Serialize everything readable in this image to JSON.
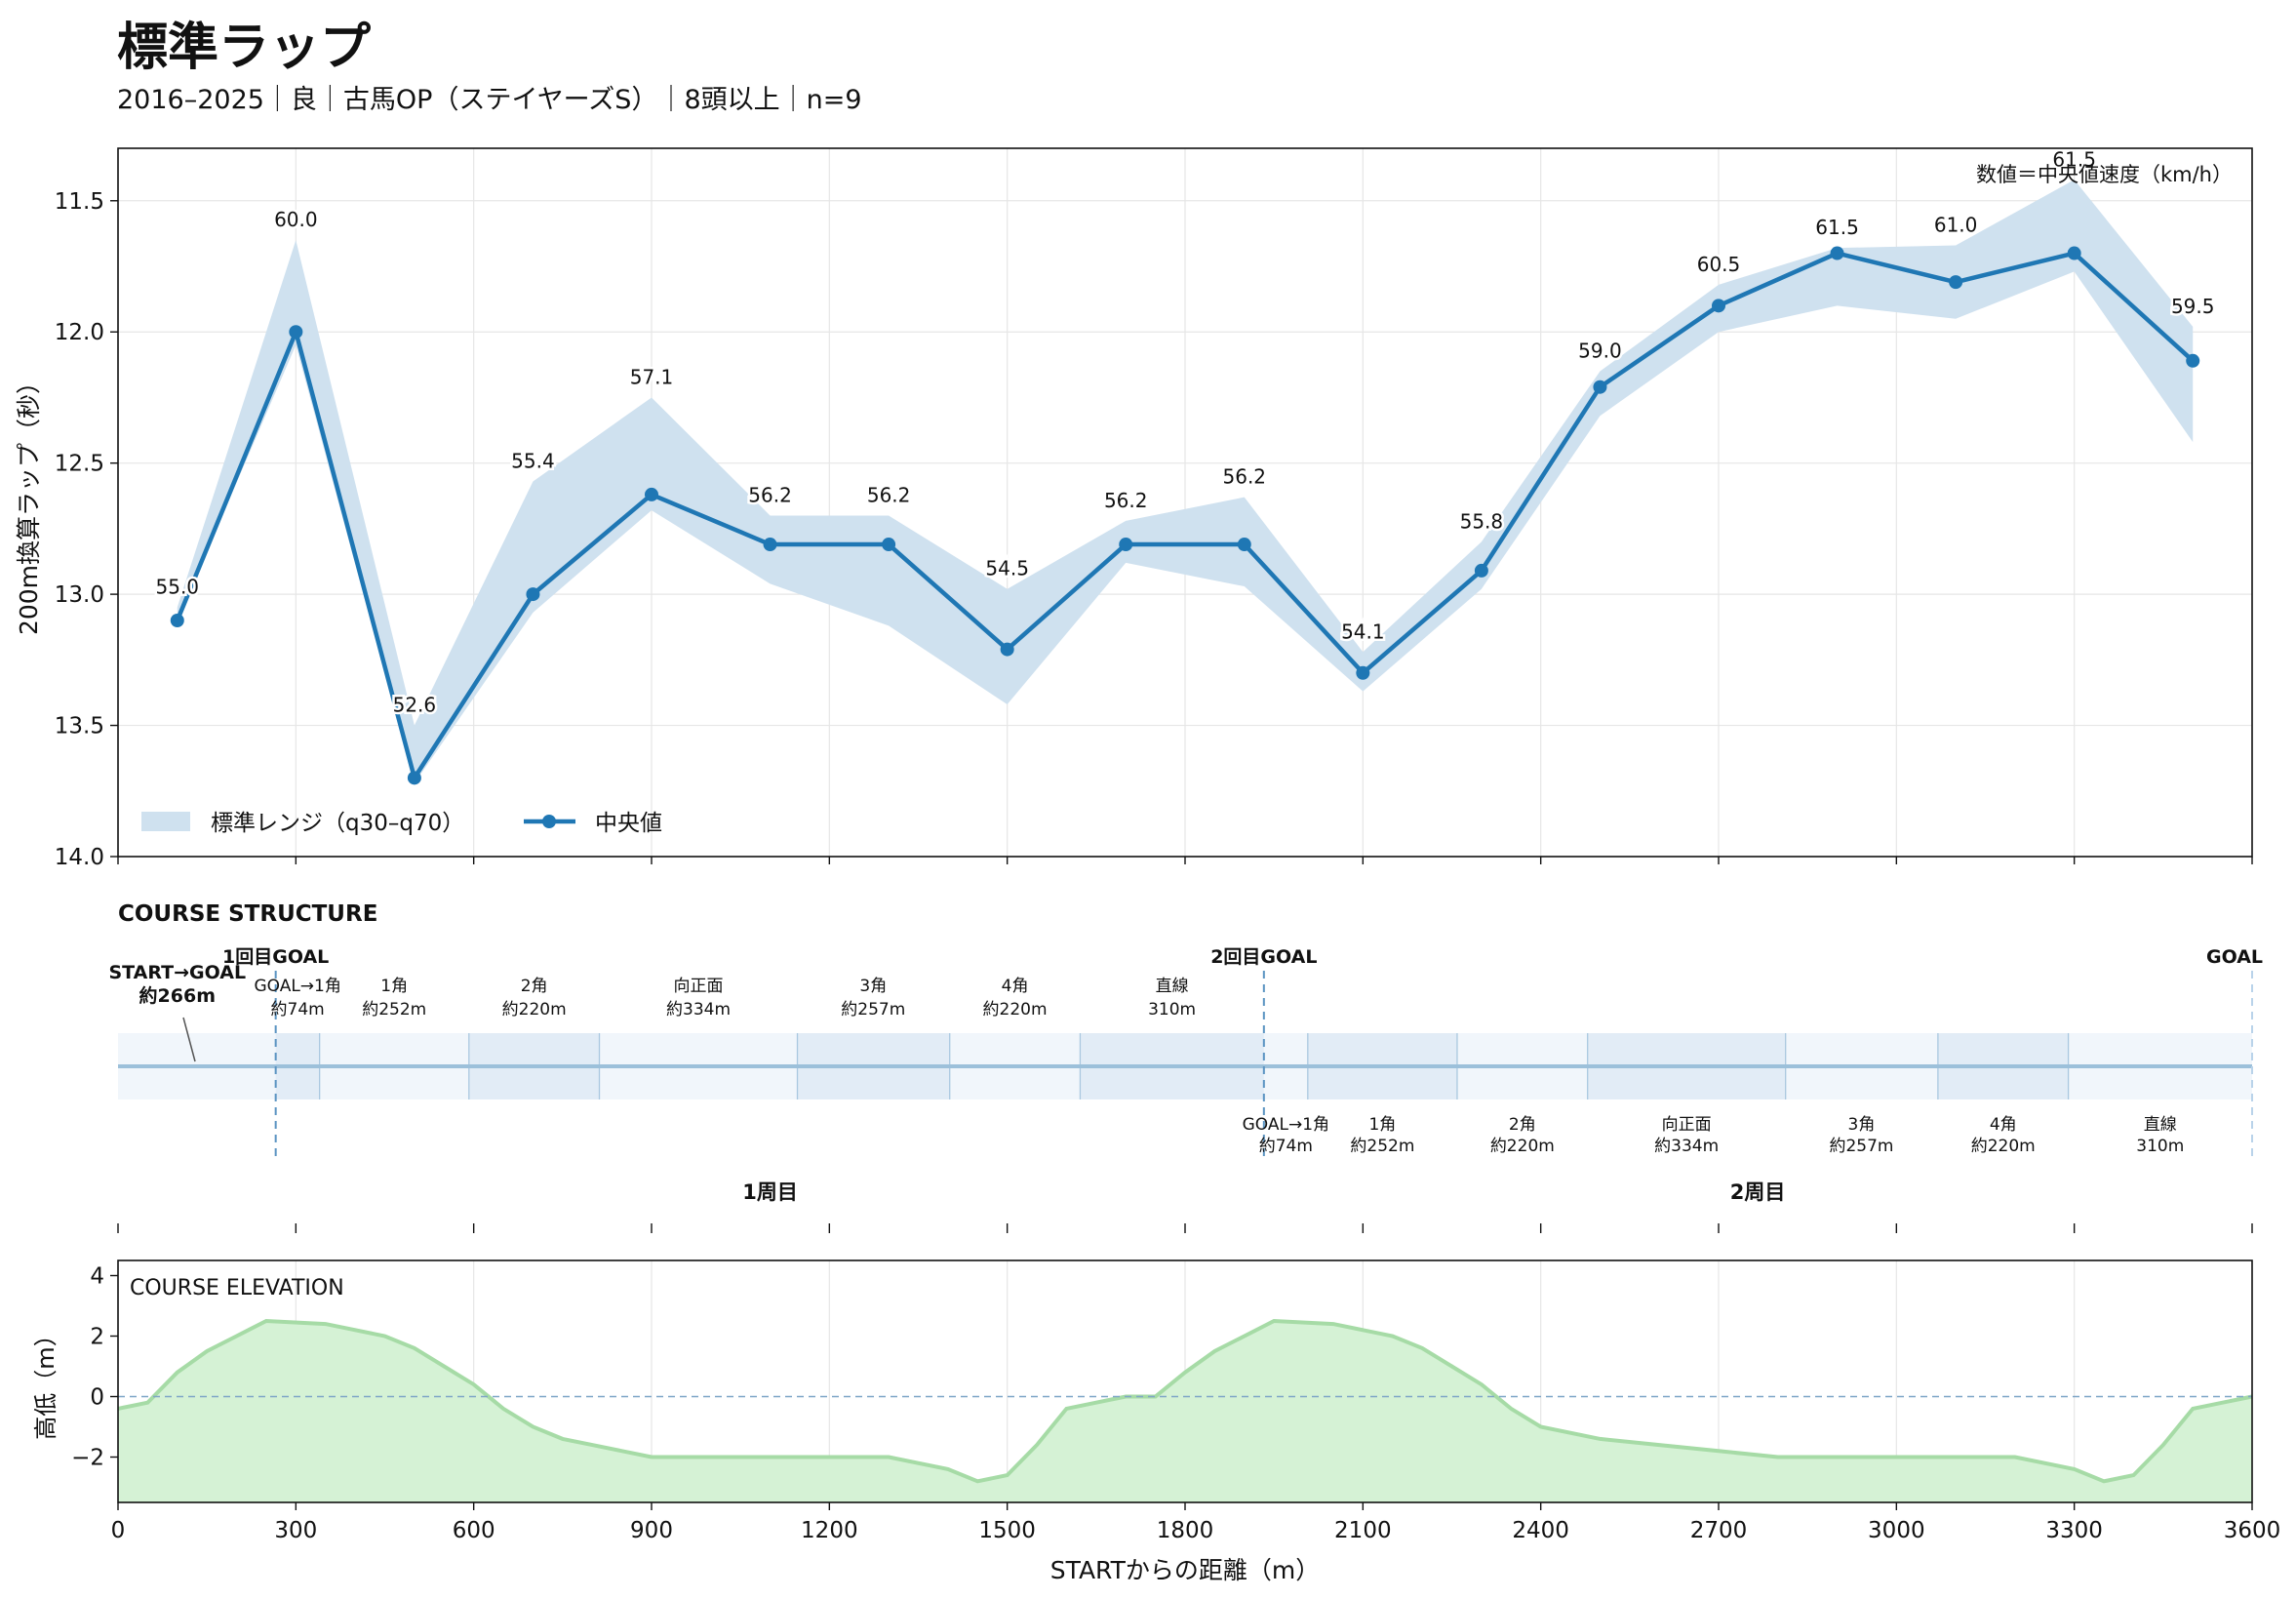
{
  "title": "標準ラップ",
  "subtitle": "2016–2025｜良｜古馬OP（ステイヤーズS）｜8頭以上｜n=9",
  "chart_data": [
    {
      "type": "line",
      "ylabel": "200m換算ラップ（秒）",
      "annotation": "数値＝中央値速度（km/h）",
      "ylim": [
        14.0,
        11.3
      ],
      "yticks": [
        11.5,
        12.0,
        12.5,
        13.0,
        13.5,
        14.0
      ],
      "ytick_labels": [
        "11.5",
        "12.0",
        "12.5",
        "13.0",
        "13.5",
        "14.0"
      ],
      "xlim": [
        0,
        3600
      ],
      "grid": true,
      "legend_position": "lower-left",
      "legend": {
        "band_label": "標準レンジ（q30–q70）",
        "line_label": "中央値"
      },
      "x": [
        100,
        300,
        500,
        700,
        900,
        1100,
        1300,
        1500,
        1700,
        1900,
        2100,
        2300,
        2500,
        2700,
        2900,
        3100,
        3300,
        3500
      ],
      "series": [
        {
          "name": "中央値",
          "values": [
            13.1,
            12.0,
            13.7,
            13.0,
            12.62,
            12.81,
            12.81,
            13.21,
            12.81,
            12.81,
            13.3,
            12.91,
            12.21,
            11.9,
            11.7,
            11.81,
            11.7,
            12.11
          ],
          "labels": [
            "55.0",
            "60.0",
            "52.6",
            "55.4",
            "57.1",
            "56.2",
            "56.2",
            "54.5",
            "56.2",
            "56.2",
            "54.1",
            "55.8",
            "59.0",
            "60.5",
            "61.5",
            "61.0",
            "61.5",
            "59.5"
          ]
        },
        {
          "name": "標準レンジ（q30–q70）",
          "low": [
            13.05,
            11.65,
            13.5,
            12.57,
            12.25,
            12.7,
            12.7,
            12.98,
            12.72,
            12.63,
            13.22,
            12.8,
            12.15,
            11.82,
            11.68,
            11.67,
            11.42,
            11.98
          ],
          "high": [
            13.1,
            12.05,
            13.72,
            13.07,
            12.68,
            12.96,
            13.12,
            13.42,
            12.88,
            12.97,
            13.37,
            12.98,
            12.32,
            12.0,
            11.9,
            11.95,
            11.77,
            12.42
          ]
        }
      ]
    },
    {
      "type": "other",
      "title": "COURSE STRUCTURE",
      "top_labels": [
        {
          "text": "START→GOAL\n約266m",
          "x": 100,
          "bold": true
        },
        {
          "text": "1回目GOAL",
          "x": 266,
          "bold": true
        },
        {
          "text": "GOAL→1角\n約74m",
          "x": 303,
          "bold": false
        },
        {
          "text": "1角\n約252m",
          "x": 466,
          "bold": false
        },
        {
          "text": "2角\n約220m",
          "x": 702,
          "bold": false
        },
        {
          "text": "向正面\n約334m",
          "x": 979,
          "bold": false
        },
        {
          "text": "3角\n約257m",
          "x": 1274,
          "bold": false
        },
        {
          "text": "4角\n約220m",
          "x": 1513,
          "bold": false
        },
        {
          "text": "直線\n310m",
          "x": 1778,
          "bold": false
        },
        {
          "text": "2回目GOAL",
          "x": 1933,
          "bold": true
        },
        {
          "text": "GOAL",
          "x": 3600,
          "bold": true
        }
      ],
      "bottom_labels": [
        {
          "text": "GOAL→1角\n約74m",
          "x": 1970
        },
        {
          "text": "1角\n約252m",
          "x": 2133
        },
        {
          "text": "2角\n約220m",
          "x": 2369
        },
        {
          "text": "向正面\n約334m",
          "x": 2646
        },
        {
          "text": "3角\n約257m",
          "x": 2941
        },
        {
          "text": "4角\n約220m",
          "x": 3180
        },
        {
          "text": "直線\n310m",
          "x": 3445
        }
      ],
      "boundaries": [
        340,
        592,
        812,
        1146,
        1403,
        1623,
        2007,
        2259,
        2479,
        2813,
        3070,
        3290
      ],
      "shaded_segments": [
        [
          266,
          340
        ],
        [
          592,
          812
        ],
        [
          1146,
          1403
        ],
        [
          1623,
          1933
        ],
        [
          2007,
          2259
        ],
        [
          2479,
          2813
        ],
        [
          3070,
          3290
        ]
      ],
      "goal_lines": [
        266,
        1933,
        3600
      ],
      "laps": [
        {
          "text": "1周目",
          "x": 1100
        },
        {
          "text": "2周目",
          "x": 2766
        }
      ]
    },
    {
      "type": "area",
      "title": "COURSE ELEVATION",
      "ylabel": "高低（m）",
      "xlabel": "STARTからの距離（m）",
      "xlim": [
        0,
        3600
      ],
      "ylim": [
        -3.5,
        4.5
      ],
      "yticks": [
        -2,
        0,
        2,
        4
      ],
      "ytick_labels": [
        "−2",
        "0",
        "2",
        "4"
      ],
      "xticks": [
        0,
        300,
        600,
        900,
        1200,
        1500,
        1800,
        2100,
        2400,
        2700,
        3000,
        3300,
        3600
      ],
      "xtick_labels": [
        "0",
        "300",
        "600",
        "900",
        "1200",
        "1500",
        "1800",
        "2100",
        "2400",
        "2700",
        "3000",
        "3300",
        "3600"
      ],
      "x": [
        0,
        50,
        100,
        150,
        200,
        250,
        350,
        450,
        500,
        550,
        600,
        650,
        700,
        750,
        800,
        900,
        1000,
        1100,
        1200,
        1300,
        1400,
        1450,
        1500,
        1550,
        1600,
        1650,
        1700,
        1750,
        1800,
        1850,
        1950,
        2050,
        2150,
        2200,
        2250,
        2300,
        2350,
        2400,
        2500,
        2600,
        2700,
        2800,
        2900,
        3000,
        3100,
        3200,
        3300,
        3350,
        3400,
        3450,
        3500,
        3600
      ],
      "values": [
        -0.4,
        -0.2,
        0.8,
        1.5,
        2.0,
        2.5,
        2.4,
        2.0,
        1.6,
        1.0,
        0.4,
        -0.4,
        -1.0,
        -1.4,
        -1.6,
        -2.0,
        -2.0,
        -2.0,
        -2.0,
        -2.0,
        -2.4,
        -2.8,
        -2.6,
        -1.6,
        -0.4,
        -0.2,
        0.0,
        0.0,
        0.8,
        1.5,
        2.5,
        2.4,
        2.0,
        1.6,
        1.0,
        0.4,
        -0.4,
        -1.0,
        -1.4,
        -1.6,
        -1.8,
        -2.0,
        -2.0,
        -2.0,
        -2.0,
        -2.0,
        -2.4,
        -2.8,
        -2.6,
        -1.6,
        -0.4,
        0.0
      ]
    }
  ]
}
